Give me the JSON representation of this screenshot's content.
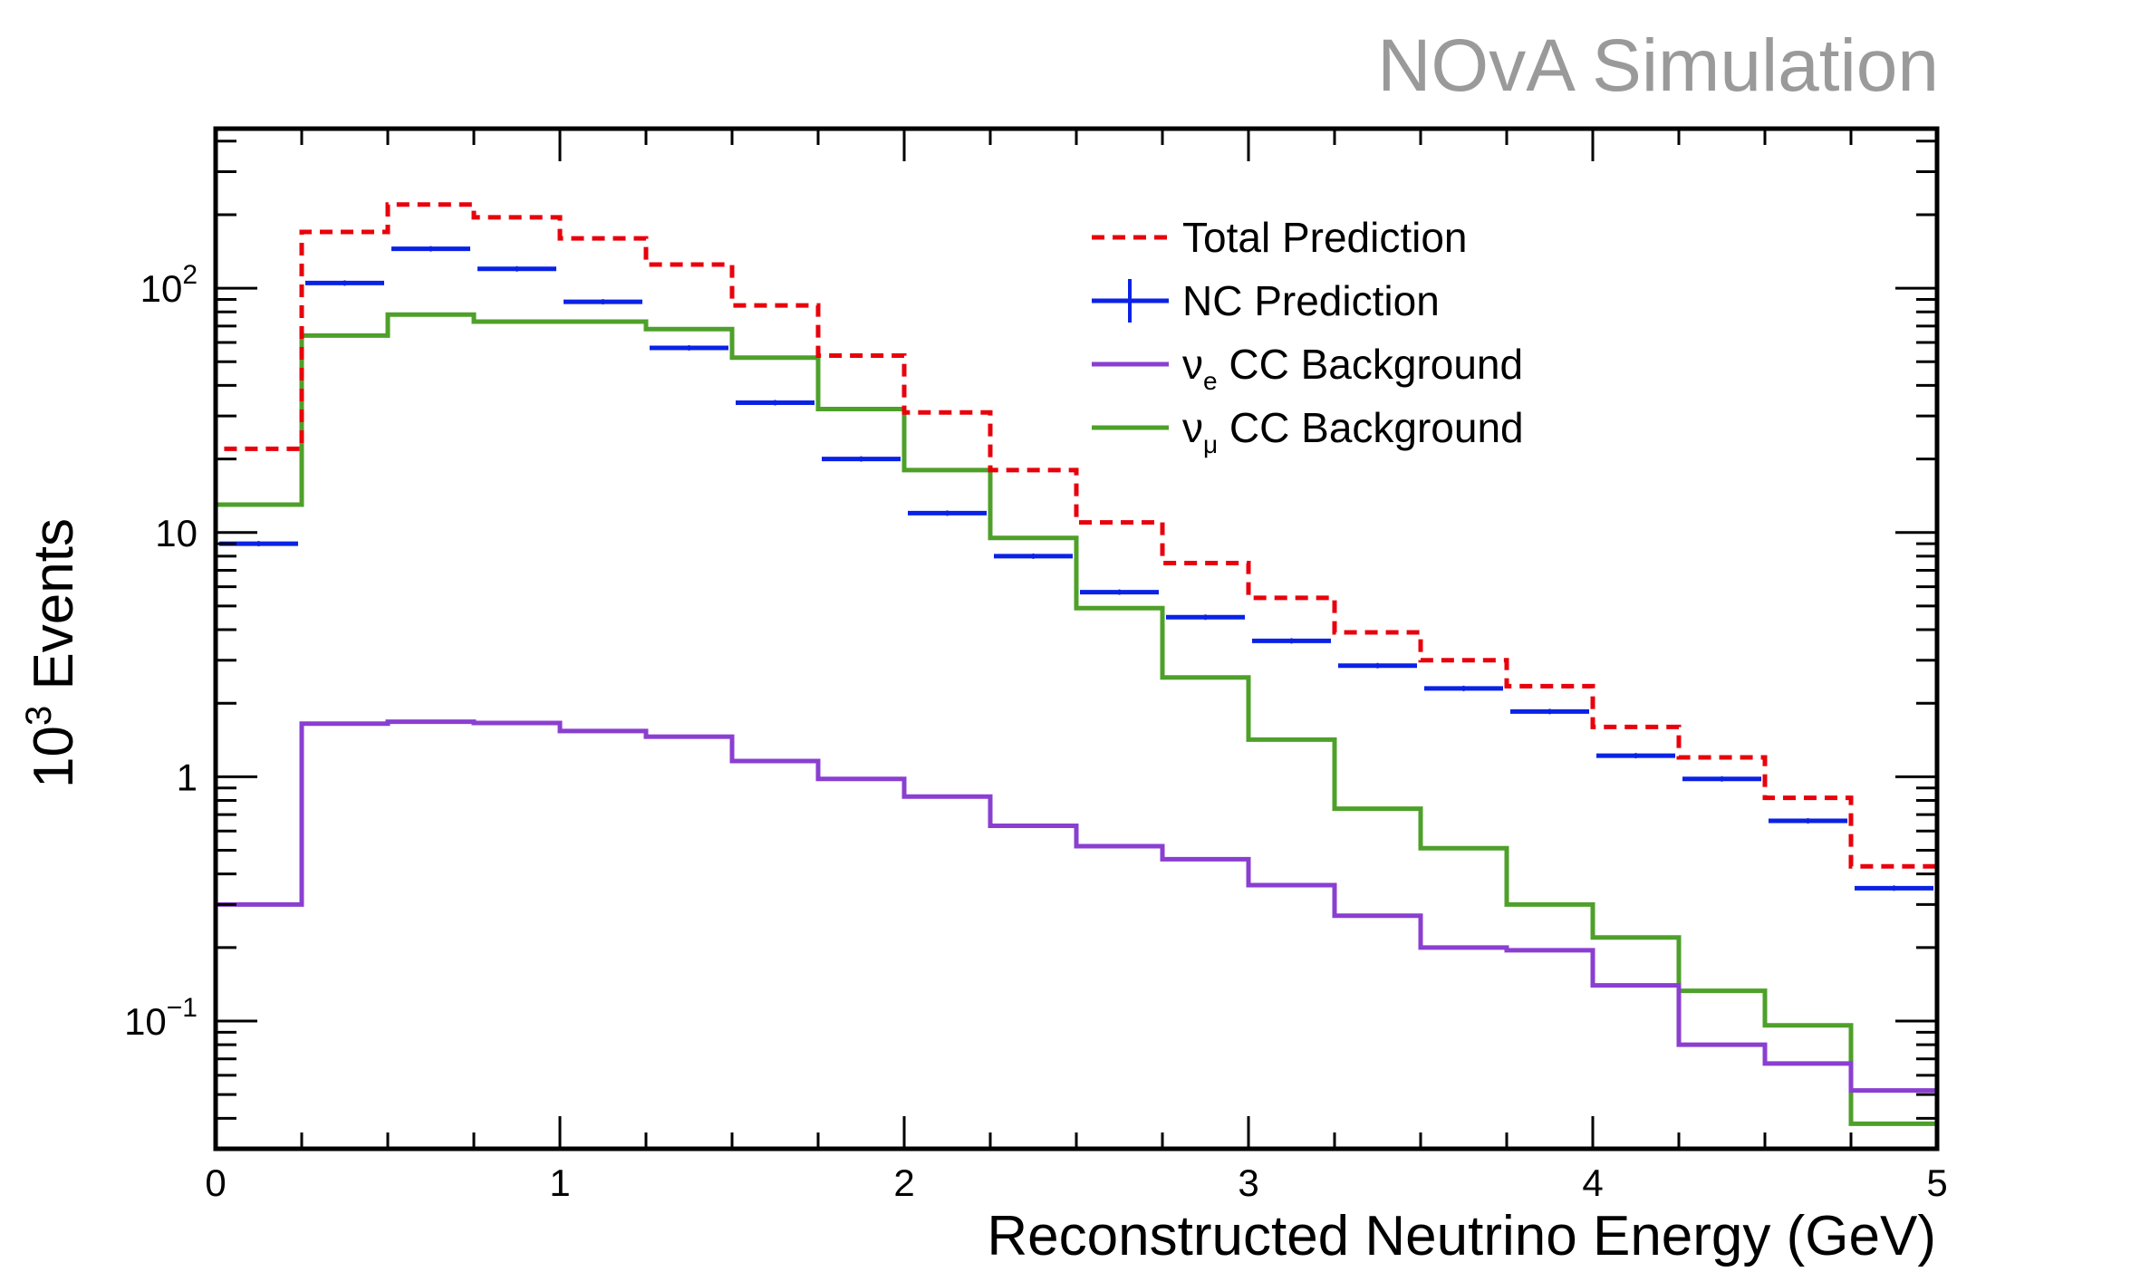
{
  "watermark": "NOvA Simulation",
  "chart_data": {
    "type": "line",
    "style": "step-histogram",
    "xlabel": "Reconstructed Neutrino Energy (GeV)",
    "ylabel_base": "10",
    "ylabel_exp": "3",
    "ylabel_rest": " Events",
    "xlim": [
      0,
      5
    ],
    "ylim": [
      0.03,
      450
    ],
    "yscale": "log",
    "grid": false,
    "legend_position": "top-right",
    "x_ticks": [
      {
        "value": 0,
        "label": "0"
      },
      {
        "value": 1,
        "label": "1"
      },
      {
        "value": 2,
        "label": "2"
      },
      {
        "value": 3,
        "label": "3"
      },
      {
        "value": 4,
        "label": "4"
      },
      {
        "value": 5,
        "label": "5"
      }
    ],
    "y_ticks": [
      {
        "value": 0.1,
        "base": "10",
        "exp": "−1"
      },
      {
        "value": 1,
        "base": "1",
        "exp": ""
      },
      {
        "value": 10,
        "base": "10",
        "exp": ""
      },
      {
        "value": 100,
        "base": "10",
        "exp": "2"
      }
    ],
    "bin_edges": [
      0,
      0.25,
      0.5,
      0.75,
      1.0,
      1.25,
      1.5,
      1.75,
      2.0,
      2.25,
      2.5,
      2.75,
      3.0,
      3.25,
      3.5,
      3.75,
      4.0,
      4.25,
      4.5,
      4.75,
      5.0
    ],
    "series": [
      {
        "key": "total",
        "name": "Total Prediction",
        "color": "#e8000b",
        "style": "dashed-step",
        "values": [
          22,
          170,
          220,
          195,
          160,
          125,
          85,
          53,
          31,
          18,
          11,
          7.5,
          5.4,
          3.9,
          3.0,
          2.35,
          1.6,
          1.2,
          0.82,
          0.43
        ]
      },
      {
        "key": "nc",
        "name": "NC Prediction",
        "color": "#0a22e6",
        "style": "points-xerr",
        "values": [
          9,
          105,
          145,
          120,
          88,
          57,
          34,
          20,
          12,
          8.0,
          5.7,
          4.5,
          3.6,
          2.85,
          2.3,
          1.85,
          1.22,
          0.98,
          0.66,
          0.35
        ]
      },
      {
        "key": "nue",
        "name": "CC Background",
        "symbol": "ν",
        "subscript": "e",
        "color": "#8a3fd1",
        "style": "step",
        "values": [
          0.3,
          1.65,
          1.68,
          1.66,
          1.54,
          1.46,
          1.16,
          0.98,
          0.83,
          0.63,
          0.52,
          0.46,
          0.36,
          0.27,
          0.2,
          0.195,
          0.14,
          0.08,
          0.067,
          0.052
        ]
      },
      {
        "key": "numu",
        "name": "CC Background",
        "symbol": "ν",
        "subscript": "μ",
        "color": "#4ea02a",
        "style": "step",
        "values": [
          13,
          64,
          78,
          73,
          73,
          68,
          52,
          32,
          18,
          9.5,
          4.9,
          2.55,
          1.42,
          0.74,
          0.51,
          0.3,
          0.22,
          0.133,
          0.096,
          0.038
        ]
      }
    ]
  }
}
